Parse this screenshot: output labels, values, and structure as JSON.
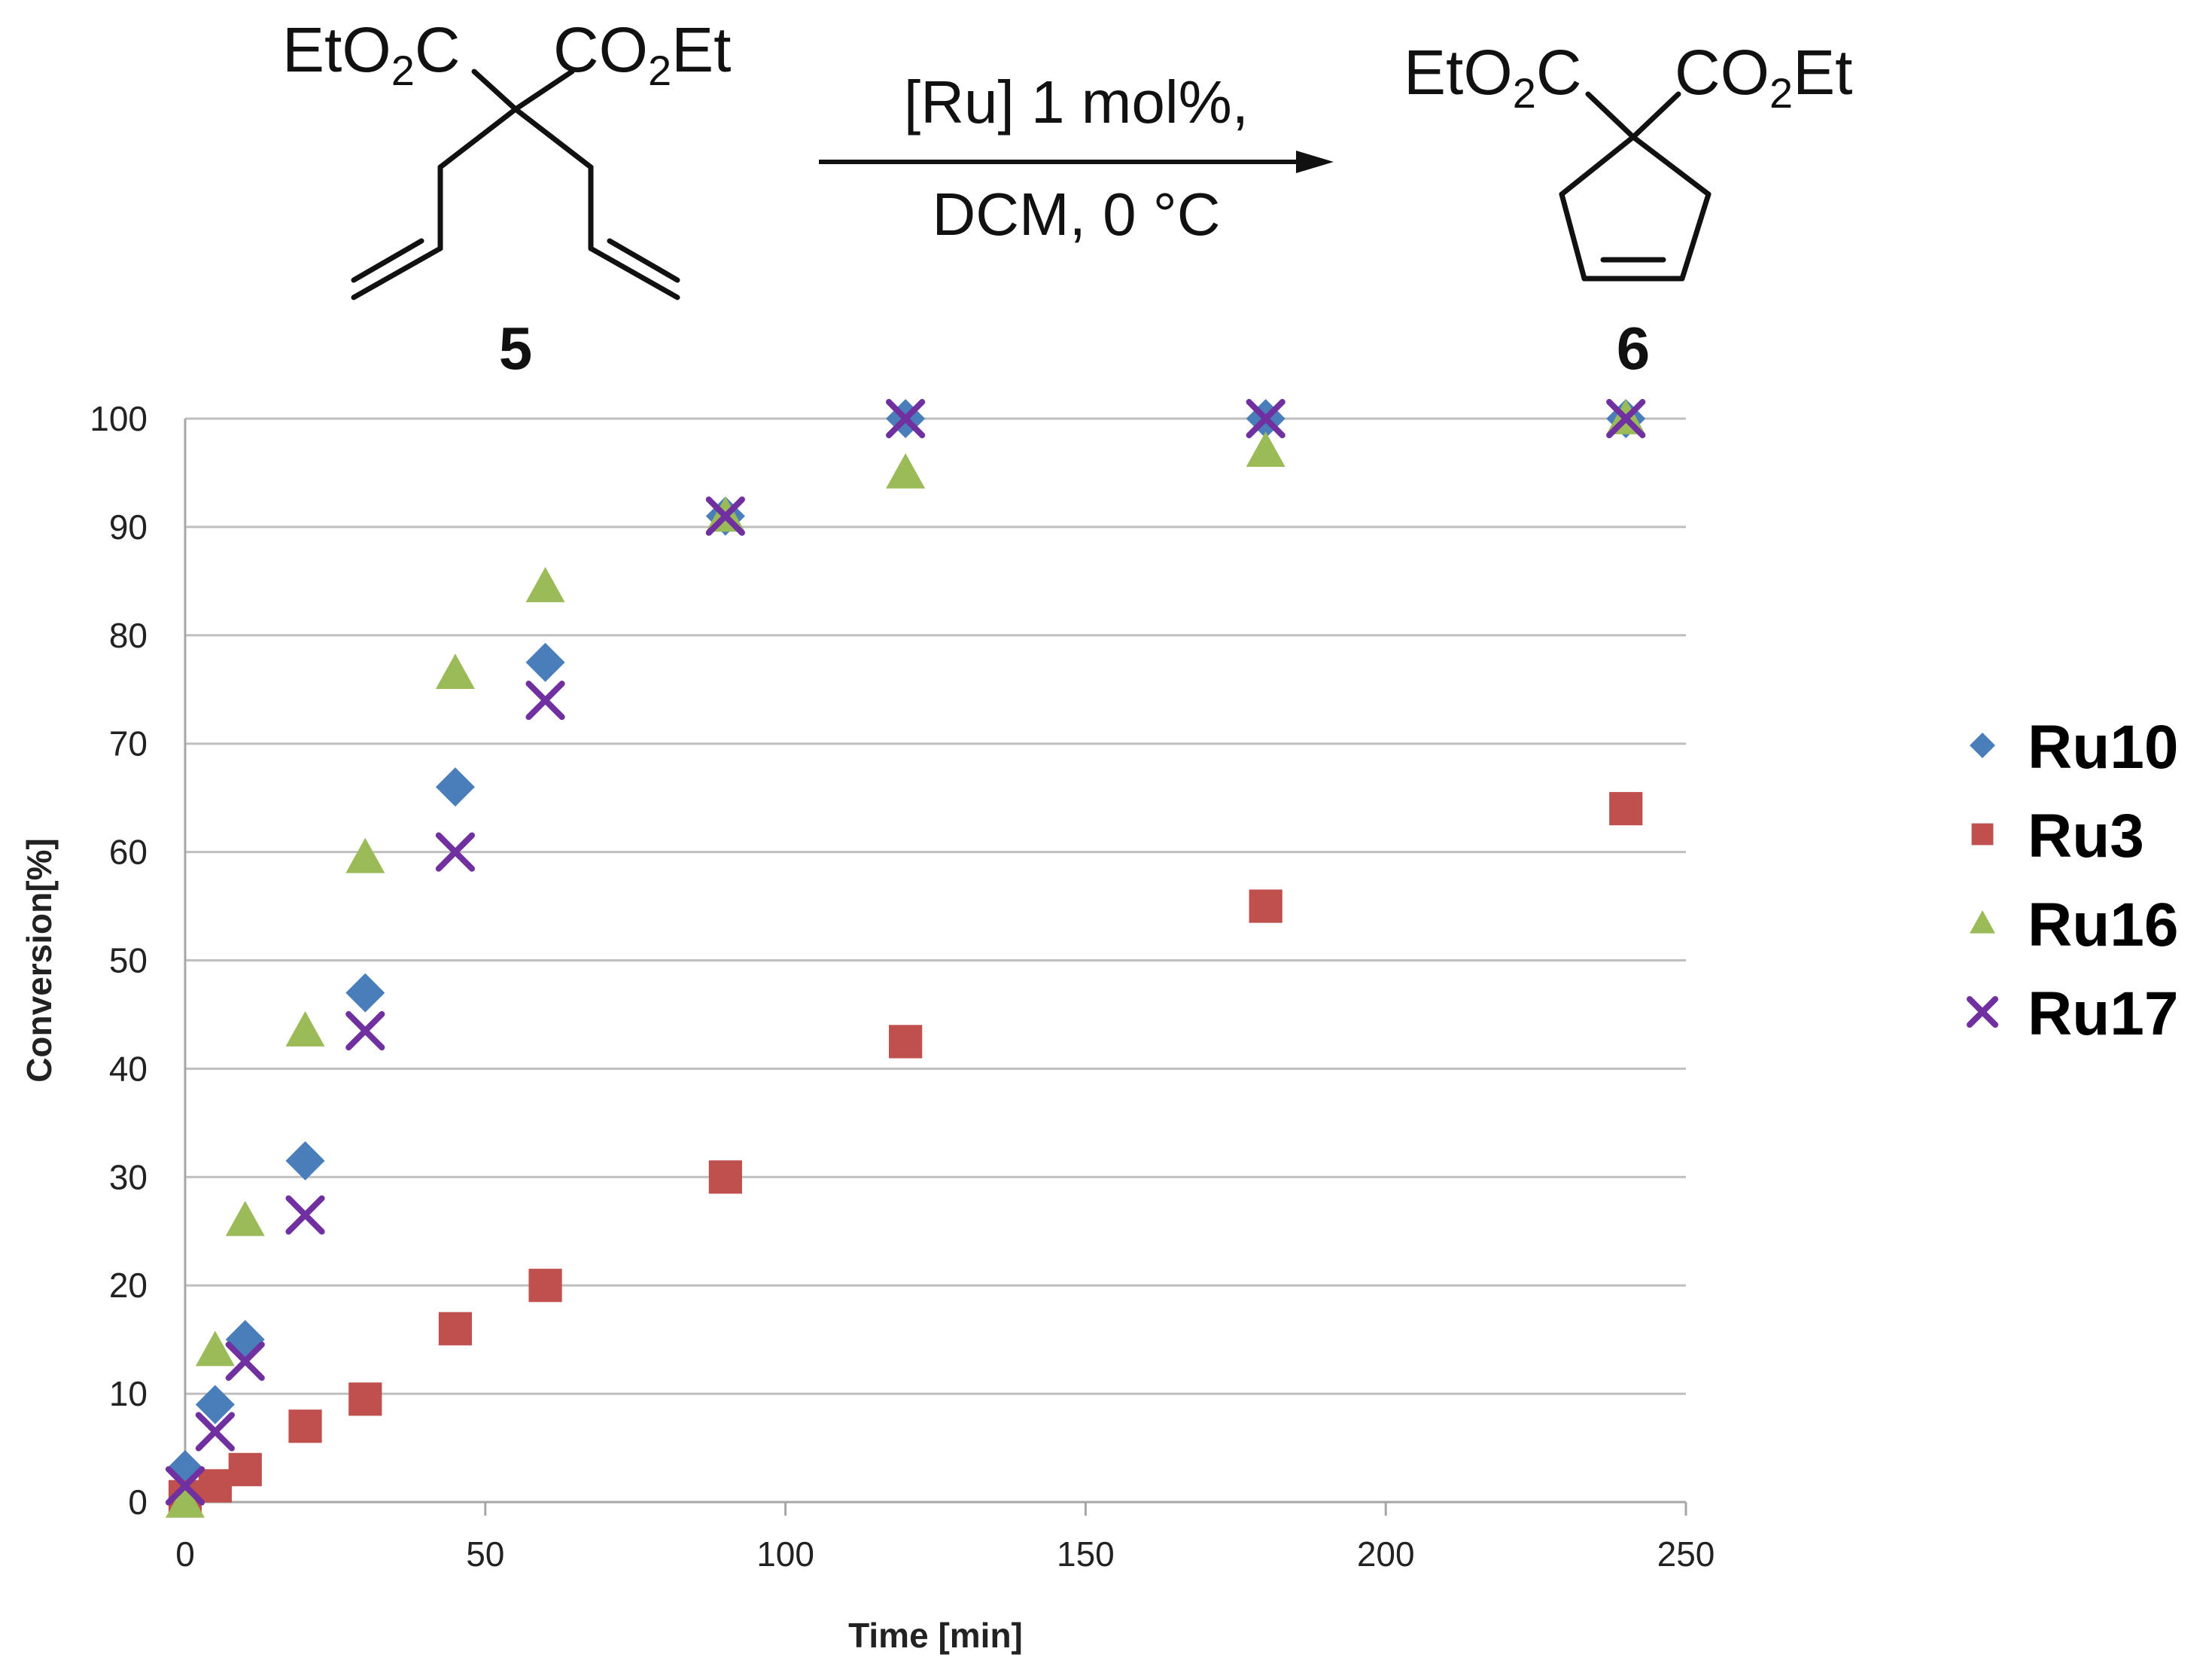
{
  "scheme": {
    "reactant": {
      "left_group": "EtO2C",
      "right_group": "CO2Et",
      "label": "5"
    },
    "product": {
      "left_group": "EtO2C",
      "right_group": "CO2Et",
      "label": "6"
    },
    "conditions": {
      "line1": "[Ru] 1 mol%,",
      "line2": "DCM, 0 °C"
    }
  },
  "chart_data": {
    "type": "scatter",
    "title": "",
    "xlabel": "Time [min]",
    "ylabel": "Conversion[%]",
    "xlim": [
      0,
      250
    ],
    "ylim": [
      0,
      100
    ],
    "xticks": [
      0,
      50,
      100,
      150,
      200,
      250
    ],
    "yticks": [
      0,
      10,
      20,
      30,
      40,
      50,
      60,
      70,
      80,
      90,
      100
    ],
    "grid": "horizontal",
    "legend_position": "right",
    "series": [
      {
        "name": "Ru10",
        "marker": "diamond",
        "color": "#4a7ebb",
        "x": [
          0,
          5,
          10,
          20,
          30,
          45,
          60,
          90,
          120,
          180,
          240
        ],
        "y": [
          3,
          9,
          15,
          31.5,
          47,
          66,
          77.5,
          91,
          100,
          100,
          100
        ]
      },
      {
        "name": "Ru3",
        "marker": "square",
        "color": "#c0504d",
        "x": [
          0,
          5,
          10,
          20,
          30,
          45,
          60,
          90,
          120,
          180,
          240
        ],
        "y": [
          0.5,
          1.5,
          3,
          7,
          9.5,
          16,
          20,
          30,
          42.5,
          55,
          64
        ]
      },
      {
        "name": "Ru16",
        "marker": "triangle",
        "color": "#9bbb59",
        "x": [
          0,
          5,
          10,
          20,
          30,
          45,
          60,
          90,
          120,
          180,
          240
        ],
        "y": [
          0,
          14,
          26,
          43.5,
          59.5,
          76.5,
          84.5,
          91,
          95,
          97,
          100
        ]
      },
      {
        "name": "Ru17",
        "marker": "x",
        "color": "#7030a0",
        "x": [
          0,
          5,
          10,
          20,
          30,
          45,
          60,
          90,
          120,
          180,
          240
        ],
        "y": [
          1.5,
          6.5,
          13,
          26.5,
          43.5,
          60,
          74,
          91,
          100,
          100,
          100
        ]
      }
    ]
  }
}
